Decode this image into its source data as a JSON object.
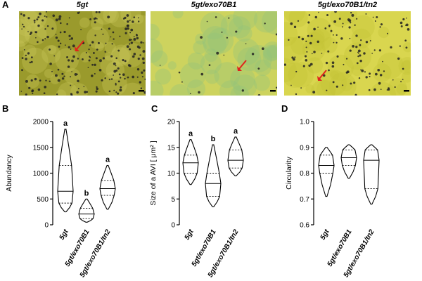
{
  "figure": {
    "panel_a": {
      "letter": "A",
      "images": [
        {
          "title": "5gt",
          "bg": "#9a9a2c",
          "tint": "#c9c65a",
          "dot_density": "high",
          "arrow": true,
          "scale_bar": true
        },
        {
          "title": "5gt/exo70B1",
          "bg": "#cdd35e",
          "tint": "#93c47a",
          "dot_density": "low",
          "arrow": true,
          "scale_bar": true
        },
        {
          "title": "5gt/exo70B1/tn2",
          "bg": "#d9d64f",
          "tint": "#c3c236",
          "dot_density": "medium",
          "arrow": true,
          "scale_bar": true
        }
      ]
    },
    "panel_b": {
      "letter": "B"
    },
    "panel_c": {
      "letter": "C"
    },
    "panel_d": {
      "letter": "D"
    }
  },
  "chart_data": [
    {
      "type": "violin",
      "ylabel": "Abundancy",
      "ylim": [
        0,
        2000
      ],
      "yticks": [
        "0",
        "500",
        "1000",
        "1500",
        "2000"
      ],
      "categories": [
        "5gt",
        "5gt/exo70B1",
        "5gt/exo70B1/tn2"
      ],
      "letters": [
        "a",
        "b",
        "a"
      ],
      "series": [
        {
          "min": 250,
          "q1": 420,
          "median": 650,
          "q3": 1150,
          "max": 1850
        },
        {
          "min": 50,
          "q1": 120,
          "median": 210,
          "q3": 320,
          "max": 500
        },
        {
          "min": 300,
          "q1": 570,
          "median": 700,
          "q3": 860,
          "max": 1150
        }
      ]
    },
    {
      "type": "violin",
      "ylabel": "Size of a AVI [ μm² ]",
      "ylim": [
        0,
        20
      ],
      "yticks": [
        "0",
        "5",
        "10",
        "15",
        "20"
      ],
      "categories": [
        "5gt",
        "5gt/exo70B1",
        "5gt/exo70B1/tn2"
      ],
      "letters": [
        "a",
        "b",
        "a"
      ],
      "series": [
        {
          "min": 7.8,
          "q1": 10.0,
          "median": 12.0,
          "q3": 13.5,
          "max": 16.5
        },
        {
          "min": 3.5,
          "q1": 5.5,
          "median": 8.0,
          "q3": 10.0,
          "max": 15.5
        },
        {
          "min": 9.5,
          "q1": 11.0,
          "median": 12.5,
          "q3": 14.5,
          "max": 17.0
        }
      ]
    },
    {
      "type": "violin",
      "ylabel": "Circularity",
      "ylim": [
        0.6,
        1.0
      ],
      "yticks": [
        "0.6",
        "0.7",
        "0.8",
        "0.9",
        "1.0"
      ],
      "categories": [
        "5gt",
        "5gt/exo70B1",
        "5gt/exo70B1/tn2"
      ],
      "letters": [
        "",
        "",
        ""
      ],
      "series": [
        {
          "min": 0.71,
          "q1": 0.8,
          "median": 0.83,
          "q3": 0.87,
          "max": 0.9
        },
        {
          "min": 0.78,
          "q1": 0.83,
          "median": 0.86,
          "q3": 0.89,
          "max": 0.91
        },
        {
          "min": 0.68,
          "q1": 0.74,
          "median": 0.85,
          "q3": 0.89,
          "max": 0.91
        }
      ]
    }
  ]
}
